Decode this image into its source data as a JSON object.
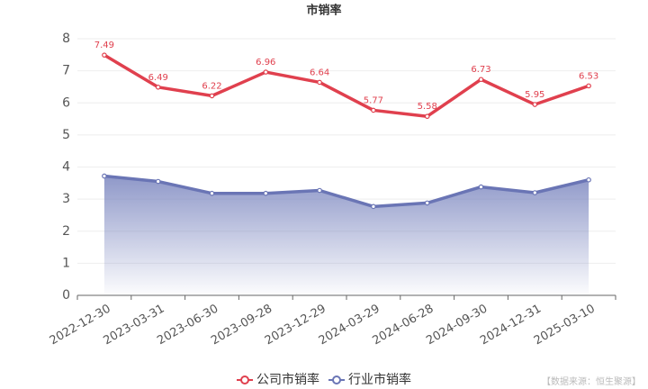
{
  "chart_data": {
    "type": "line",
    "title": "市销率",
    "categories": [
      "2022-12-30",
      "2023-03-31",
      "2023-06-30",
      "2023-09-28",
      "2023-12-29",
      "2024-03-29",
      "2024-06-28",
      "2024-09-30",
      "2024-12-31",
      "2025-03-10"
    ],
    "series": [
      {
        "name": "公司市销率",
        "color": "#e0404e",
        "values": [
          7.49,
          6.49,
          6.22,
          6.96,
          6.64,
          5.77,
          5.58,
          6.73,
          5.95,
          6.53
        ],
        "labels": true
      },
      {
        "name": "行业市销率",
        "color": "#6a75b5",
        "values": [
          3.72,
          3.55,
          3.18,
          3.18,
          3.27,
          2.77,
          2.88,
          3.38,
          3.2,
          3.6
        ],
        "area": true
      }
    ],
    "ylim": [
      0,
      8
    ],
    "yticks": [
      0,
      1,
      2,
      3,
      4,
      5,
      6,
      7,
      8
    ],
    "grid": true,
    "source": "【数据来源：恒生聚源】"
  }
}
